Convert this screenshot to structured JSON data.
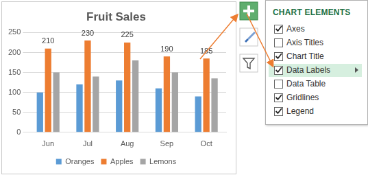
{
  "chart_data": {
    "type": "bar",
    "title": "Fruit Sales",
    "categories": [
      "Jun",
      "Jul",
      "Aug",
      "Sep",
      "Oct"
    ],
    "series": [
      {
        "name": "Oranges",
        "color": "#5b9bd5",
        "values": [
          100,
          120,
          130,
          110,
          90
        ]
      },
      {
        "name": "Apples",
        "color": "#ed7d31",
        "values": [
          210,
          230,
          225,
          190,
          185
        ],
        "data_labels": true
      },
      {
        "name": "Lemons",
        "color": "#a5a5a5",
        "values": [
          150,
          140,
          180,
          150,
          135
        ]
      }
    ],
    "ylim": [
      0,
      250
    ],
    "yticks": [
      0,
      50,
      100,
      150,
      200,
      250
    ],
    "grid": true,
    "legend": "bottom"
  },
  "chart_elements": {
    "title": "CHART ELEMENTS",
    "items": [
      {
        "label": "Axes",
        "checked": true
      },
      {
        "label": "Axis Titles",
        "checked": false
      },
      {
        "label": "Chart Title",
        "checked": true
      },
      {
        "label": "Data Labels",
        "checked": true,
        "highlighted": true
      },
      {
        "label": "Data Table",
        "checked": false
      },
      {
        "label": "Gridlines",
        "checked": true
      },
      {
        "label": "Legend",
        "checked": true
      }
    ]
  }
}
